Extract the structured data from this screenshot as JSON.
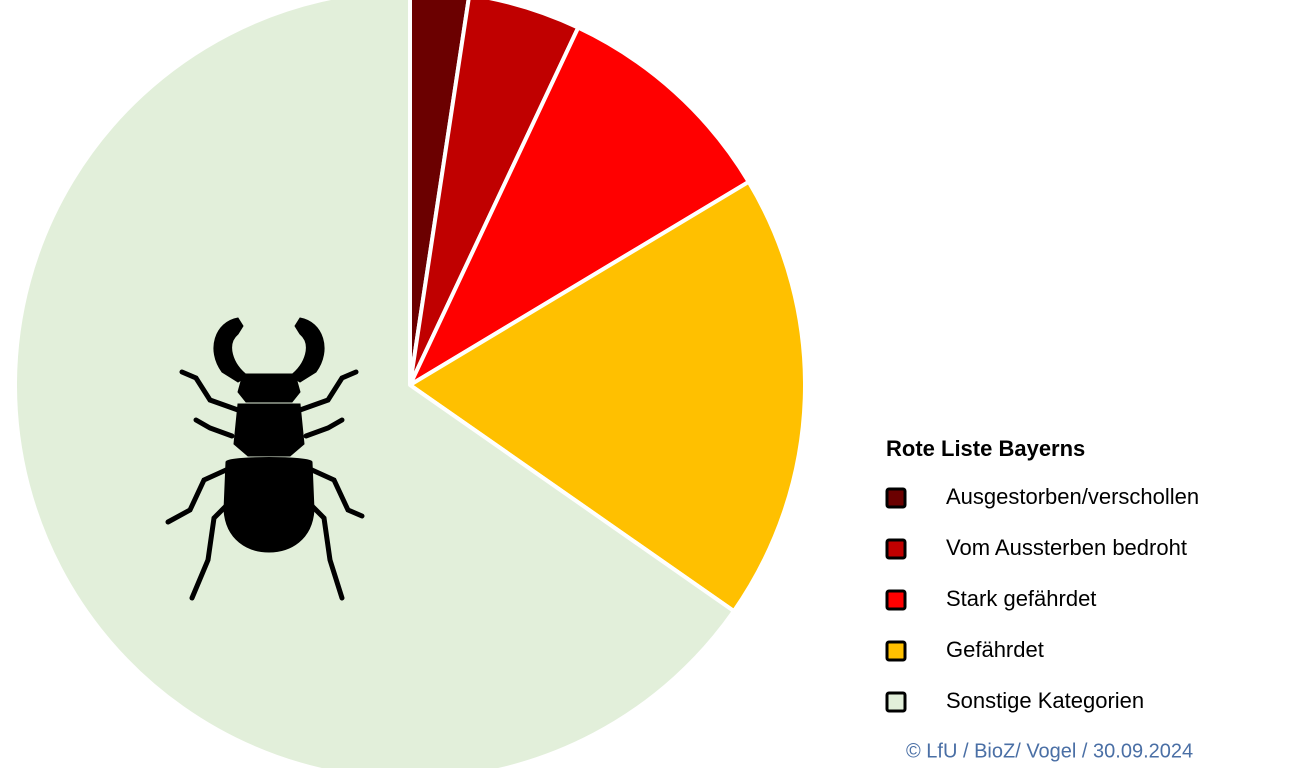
{
  "chart_data": {
    "type": "pie",
    "legend_title": "Rote Liste Bayerns",
    "categories": [
      "Ausgestorben/verschollen",
      "Vom Aussterben bedroht",
      "Stark gefährdet",
      "Gefährdet",
      "Sonstige Kategorien"
    ],
    "values": [
      2.4,
      4.6,
      9.4,
      18.3,
      65.3
    ],
    "colors": [
      "#6b0000",
      "#c00000",
      "#ff0000",
      "#ffc000",
      "#e2efda"
    ],
    "legend": "right",
    "source": "© LfU / BioZ/ Vogel / 30.09.2024"
  }
}
